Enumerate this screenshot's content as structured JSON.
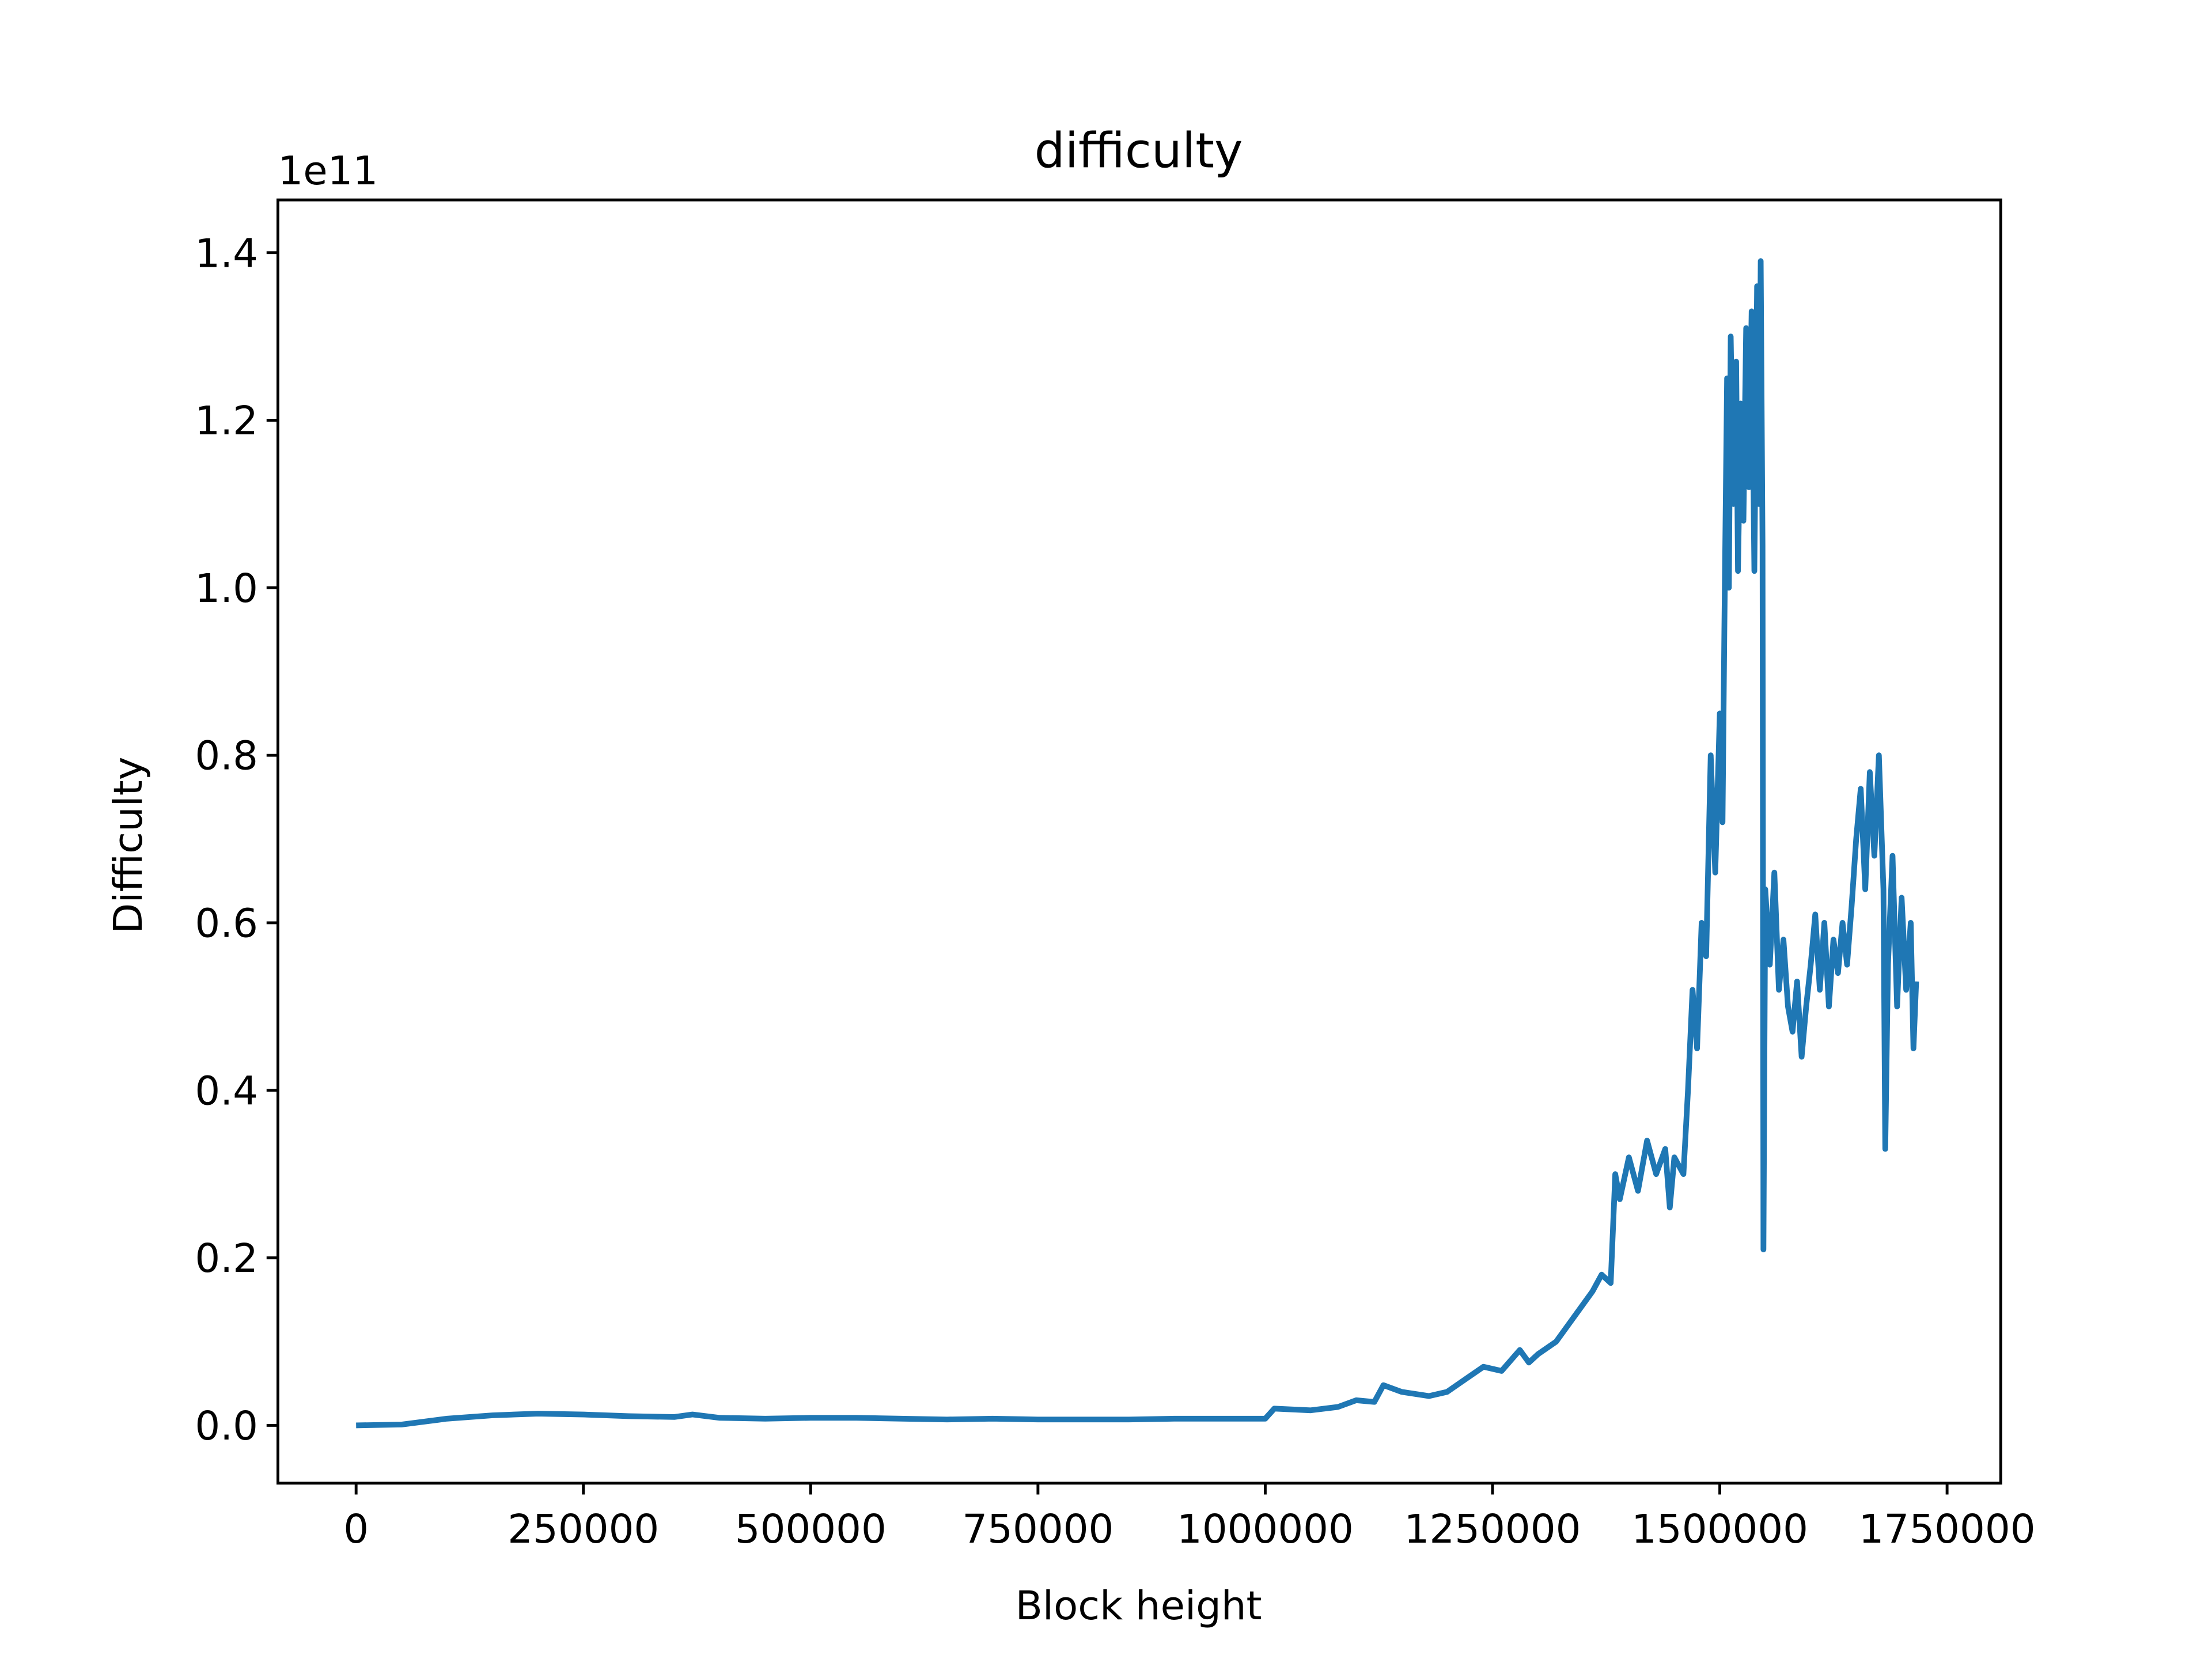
{
  "chart_data": {
    "type": "line",
    "title": "difficulty",
    "x_label": "Block height",
    "y_label": "Difficulty",
    "y_offset_label": "1e11",
    "x": [
      0,
      50000,
      100000,
      150000,
      200000,
      250000,
      300000,
      350000,
      370000,
      400000,
      450000,
      500000,
      550000,
      600000,
      650000,
      700000,
      750000,
      800000,
      850000,
      900000,
      950000,
      1000000,
      1010000,
      1050000,
      1080000,
      1100000,
      1120000,
      1130000,
      1150000,
      1180000,
      1200000,
      1220000,
      1240000,
      1260000,
      1280000,
      1290000,
      1300000,
      1320000,
      1340000,
      1360000,
      1370000,
      1380000,
      1385000,
      1390000,
      1400000,
      1410000,
      1420000,
      1430000,
      1440000,
      1445000,
      1450000,
      1460000,
      1465000,
      1470000,
      1475000,
      1480000,
      1485000,
      1490000,
      1495000,
      1500000,
      1503000,
      1505000,
      1508000,
      1510000,
      1512000,
      1515000,
      1518000,
      1520000,
      1523000,
      1526000,
      1529000,
      1532000,
      1535000,
      1538000,
      1541000,
      1543000,
      1545000,
      1547000,
      1548000,
      1550000,
      1555000,
      1560000,
      1565000,
      1570000,
      1575000,
      1580000,
      1585000,
      1590000,
      1595000,
      1600000,
      1605000,
      1610000,
      1615000,
      1620000,
      1625000,
      1630000,
      1635000,
      1640000,
      1645000,
      1650000,
      1655000,
      1660000,
      1665000,
      1670000,
      1675000,
      1680000,
      1682000,
      1685000,
      1690000,
      1695000,
      1700000,
      1705000,
      1710000,
      1713000,
      1716000
    ],
    "series": [
      {
        "color": "#1f77b4",
        "values": [
          0,
          0.001,
          0.008,
          0.012,
          0.014,
          0.013,
          0.011,
          0.01,
          0.013,
          0.009,
          0.008,
          0.009,
          0.009,
          0.008,
          0.007,
          0.008,
          0.007,
          0.007,
          0.007,
          0.008,
          0.008,
          0.008,
          0.02,
          0.018,
          0.022,
          0.03,
          0.028,
          0.048,
          0.04,
          0.035,
          0.04,
          0.055,
          0.07,
          0.065,
          0.09,
          0.075,
          0.085,
          0.1,
          0.13,
          0.16,
          0.18,
          0.17,
          0.3,
          0.27,
          0.32,
          0.28,
          0.34,
          0.3,
          0.33,
          0.26,
          0.32,
          0.3,
          0.4,
          0.52,
          0.45,
          0.6,
          0.56,
          0.8,
          0.66,
          0.85,
          0.72,
          0.95,
          1.25,
          1.0,
          1.3,
          1.1,
          1.27,
          1.02,
          1.22,
          1.08,
          1.31,
          1.12,
          1.33,
          1.02,
          1.36,
          1.1,
          1.39,
          1.05,
          0.21,
          0.64,
          0.55,
          0.66,
          0.52,
          0.58,
          0.5,
          0.47,
          0.53,
          0.44,
          0.5,
          0.55,
          0.61,
          0.52,
          0.6,
          0.5,
          0.58,
          0.54,
          0.6,
          0.55,
          0.62,
          0.7,
          0.76,
          0.64,
          0.78,
          0.68,
          0.8,
          0.64,
          0.33,
          0.55,
          0.68,
          0.5,
          0.63,
          0.52,
          0.6,
          0.45,
          0.53
        ]
      }
    ],
    "xlim": [
      -86000,
      1809000
    ],
    "ylim": [
      -0.069,
      1.463
    ],
    "xticks": [
      0,
      250000,
      500000,
      750000,
      1000000,
      1250000,
      1500000,
      1750000
    ],
    "yticks": [
      {
        "value": 0,
        "label": "0.0"
      },
      0.2,
      0.4,
      0.6,
      0.8,
      {
        "value": 1,
        "label": "1.0"
      },
      1.2,
      1.4
    ]
  }
}
